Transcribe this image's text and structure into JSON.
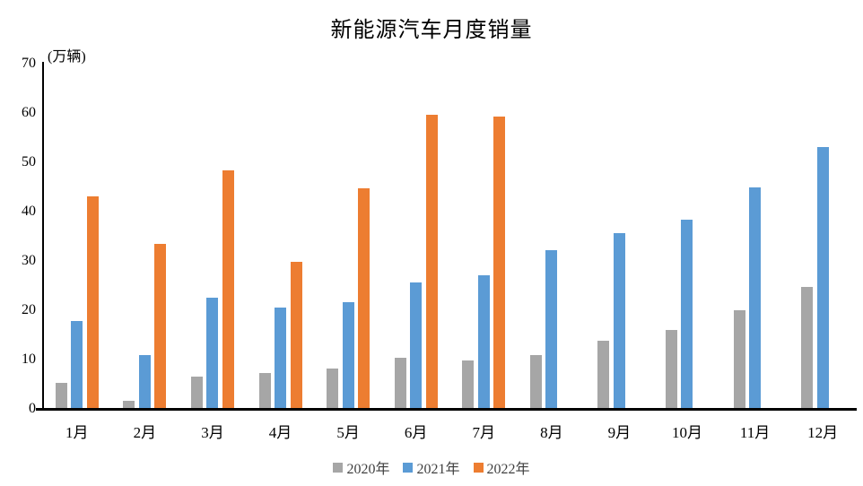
{
  "title": "新能源汽车月度销量",
  "unit_label": "(万辆)",
  "chart_data": {
    "type": "bar",
    "title": "新能源汽车月度销量",
    "ylabel": "(万辆)",
    "xlabel": "",
    "ylim": [
      0,
      70
    ],
    "y_ticks": [
      0,
      10,
      20,
      30,
      40,
      50,
      60,
      70
    ],
    "grid": false,
    "legend_position": "bottom",
    "categories": [
      "1月",
      "2月",
      "3月",
      "4月",
      "5月",
      "6月",
      "7月",
      "8月",
      "9月",
      "10月",
      "11月",
      "12月"
    ],
    "series": [
      {
        "name": "2020年",
        "color": "#A6A6A6",
        "values": [
          5.2,
          1.6,
          6.5,
          7.2,
          8.2,
          10.4,
          9.8,
          10.9,
          13.8,
          16.0,
          20.0,
          24.8
        ]
      },
      {
        "name": "2021年",
        "color": "#5B9BD5",
        "values": [
          17.9,
          11.0,
          22.6,
          20.6,
          21.7,
          25.6,
          27.1,
          32.1,
          35.7,
          38.3,
          45.0,
          53.1
        ]
      },
      {
        "name": "2022年",
        "color": "#ED7D31",
        "values": [
          43.1,
          33.4,
          48.4,
          29.9,
          44.7,
          59.6,
          59.3,
          null,
          null,
          null,
          null,
          null
        ]
      }
    ],
    "axis_color": "#000000",
    "tick_label_color": "#000000",
    "legend_text_color": "#3F3F3F",
    "background_color": "#FFFFFF"
  }
}
